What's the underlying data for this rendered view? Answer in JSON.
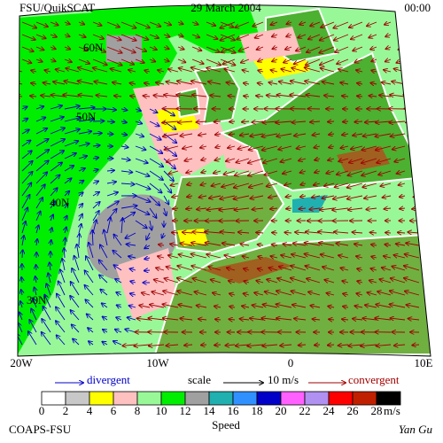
{
  "header": {
    "source": "FSU/QuikSCAT",
    "date": "29 March 2004",
    "time": "00:00"
  },
  "latitude_labels": [
    "60N",
    "50N",
    "40N",
    "30N"
  ],
  "longitude_labels": [
    "20W",
    "10W",
    "0",
    "10E"
  ],
  "legend": {
    "divergent": "divergent",
    "scale": "scale",
    "scale_value": "10 m/s",
    "convergent": "convergent"
  },
  "colorbar": {
    "labels": [
      "0",
      "2",
      "4",
      "6",
      "8",
      "10",
      "12",
      "14",
      "16",
      "18",
      "20",
      "22",
      "24",
      "26",
      "28"
    ],
    "colors": [
      "#ffffff",
      "#c8c8c8",
      "#ffff00",
      "#ffc0c0",
      "#98f898",
      "#00ee00",
      "#a0a0a0",
      "#20b0b0",
      "#3090ff",
      "#0000c8",
      "#ff60ff",
      "#b090f0",
      "#ff0000",
      "#c02000",
      "#000000"
    ],
    "unit": "m/s",
    "title": "Speed"
  },
  "footer": {
    "left": "COAPS-FSU",
    "right": "Yan Gu"
  }
}
